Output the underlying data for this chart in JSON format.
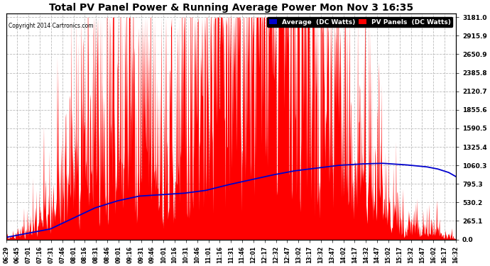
{
  "title": "Total PV Panel Power & Running Average Power Mon Nov 3 16:35",
  "copyright": "Copyright 2014 Cartronics.com",
  "legend_labels": [
    "Average  (DC Watts)",
    "PV Panels  (DC Watts)"
  ],
  "legend_colors": [
    "#0000cd",
    "#ff0000"
  ],
  "legend_bg": "#000000",
  "yticks": [
    0.0,
    265.1,
    530.2,
    795.3,
    1060.3,
    1325.4,
    1590.5,
    1855.6,
    2120.7,
    2385.8,
    2650.9,
    2915.9,
    3181.0
  ],
  "ymax": 3181.0,
  "ymin": 0.0,
  "bg_color": "#ffffff",
  "plot_bg_color": "#ffffff",
  "grid_color": "#bbbbbb",
  "bar_color": "#ff0000",
  "avg_color": "#0000cd",
  "xtick_labels": [
    "06:29",
    "06:45",
    "07:01",
    "07:16",
    "07:31",
    "07:46",
    "08:01",
    "08:16",
    "08:31",
    "08:46",
    "09:01",
    "09:16",
    "09:31",
    "09:46",
    "10:01",
    "10:16",
    "10:31",
    "10:46",
    "11:01",
    "11:16",
    "11:31",
    "11:46",
    "12:01",
    "12:17",
    "12:32",
    "12:47",
    "13:02",
    "13:17",
    "13:32",
    "13:47",
    "14:02",
    "14:17",
    "14:32",
    "14:47",
    "15:02",
    "15:17",
    "15:32",
    "15:47",
    "16:02",
    "16:17",
    "16:32"
  ],
  "envelope_keypoints": [
    [
      0,
      30
    ],
    [
      15,
      80
    ],
    [
      30,
      200
    ],
    [
      45,
      320
    ],
    [
      60,
      500
    ],
    [
      75,
      700
    ],
    [
      90,
      850
    ],
    [
      105,
      1000
    ],
    [
      120,
      1100
    ],
    [
      135,
      1200
    ],
    [
      150,
      1300
    ],
    [
      165,
      1100
    ],
    [
      180,
      900
    ],
    [
      195,
      800
    ],
    [
      210,
      700
    ],
    [
      225,
      750
    ],
    [
      240,
      820
    ],
    [
      255,
      1100
    ],
    [
      270,
      1350
    ],
    [
      285,
      1500
    ],
    [
      300,
      1600
    ],
    [
      315,
      1700
    ],
    [
      330,
      1800
    ],
    [
      345,
      2000
    ],
    [
      360,
      2100
    ],
    [
      375,
      2200
    ],
    [
      390,
      2000
    ],
    [
      405,
      1800
    ],
    [
      420,
      1600
    ],
    [
      435,
      1400
    ],
    [
      450,
      1200
    ],
    [
      465,
      1000
    ],
    [
      480,
      800
    ],
    [
      495,
      600
    ],
    [
      510,
      450
    ],
    [
      525,
      350
    ],
    [
      540,
      200
    ],
    [
      555,
      150
    ],
    [
      570,
      200
    ],
    [
      585,
      150
    ],
    [
      600,
      80
    ],
    [
      610,
      10
    ]
  ],
  "avg_keypoints": [
    [
      0,
      30
    ],
    [
      60,
      150
    ],
    [
      90,
      300
    ],
    [
      120,
      450
    ],
    [
      150,
      550
    ],
    [
      180,
      620
    ],
    [
      210,
      640
    ],
    [
      240,
      660
    ],
    [
      270,
      700
    ],
    [
      300,
      780
    ],
    [
      330,
      850
    ],
    [
      360,
      920
    ],
    [
      390,
      980
    ],
    [
      420,
      1020
    ],
    [
      450,
      1060
    ],
    [
      480,
      1080
    ],
    [
      510,
      1090
    ],
    [
      540,
      1070
    ],
    [
      570,
      1040
    ],
    [
      585,
      1010
    ],
    [
      600,
      960
    ],
    [
      610,
      900
    ]
  ]
}
